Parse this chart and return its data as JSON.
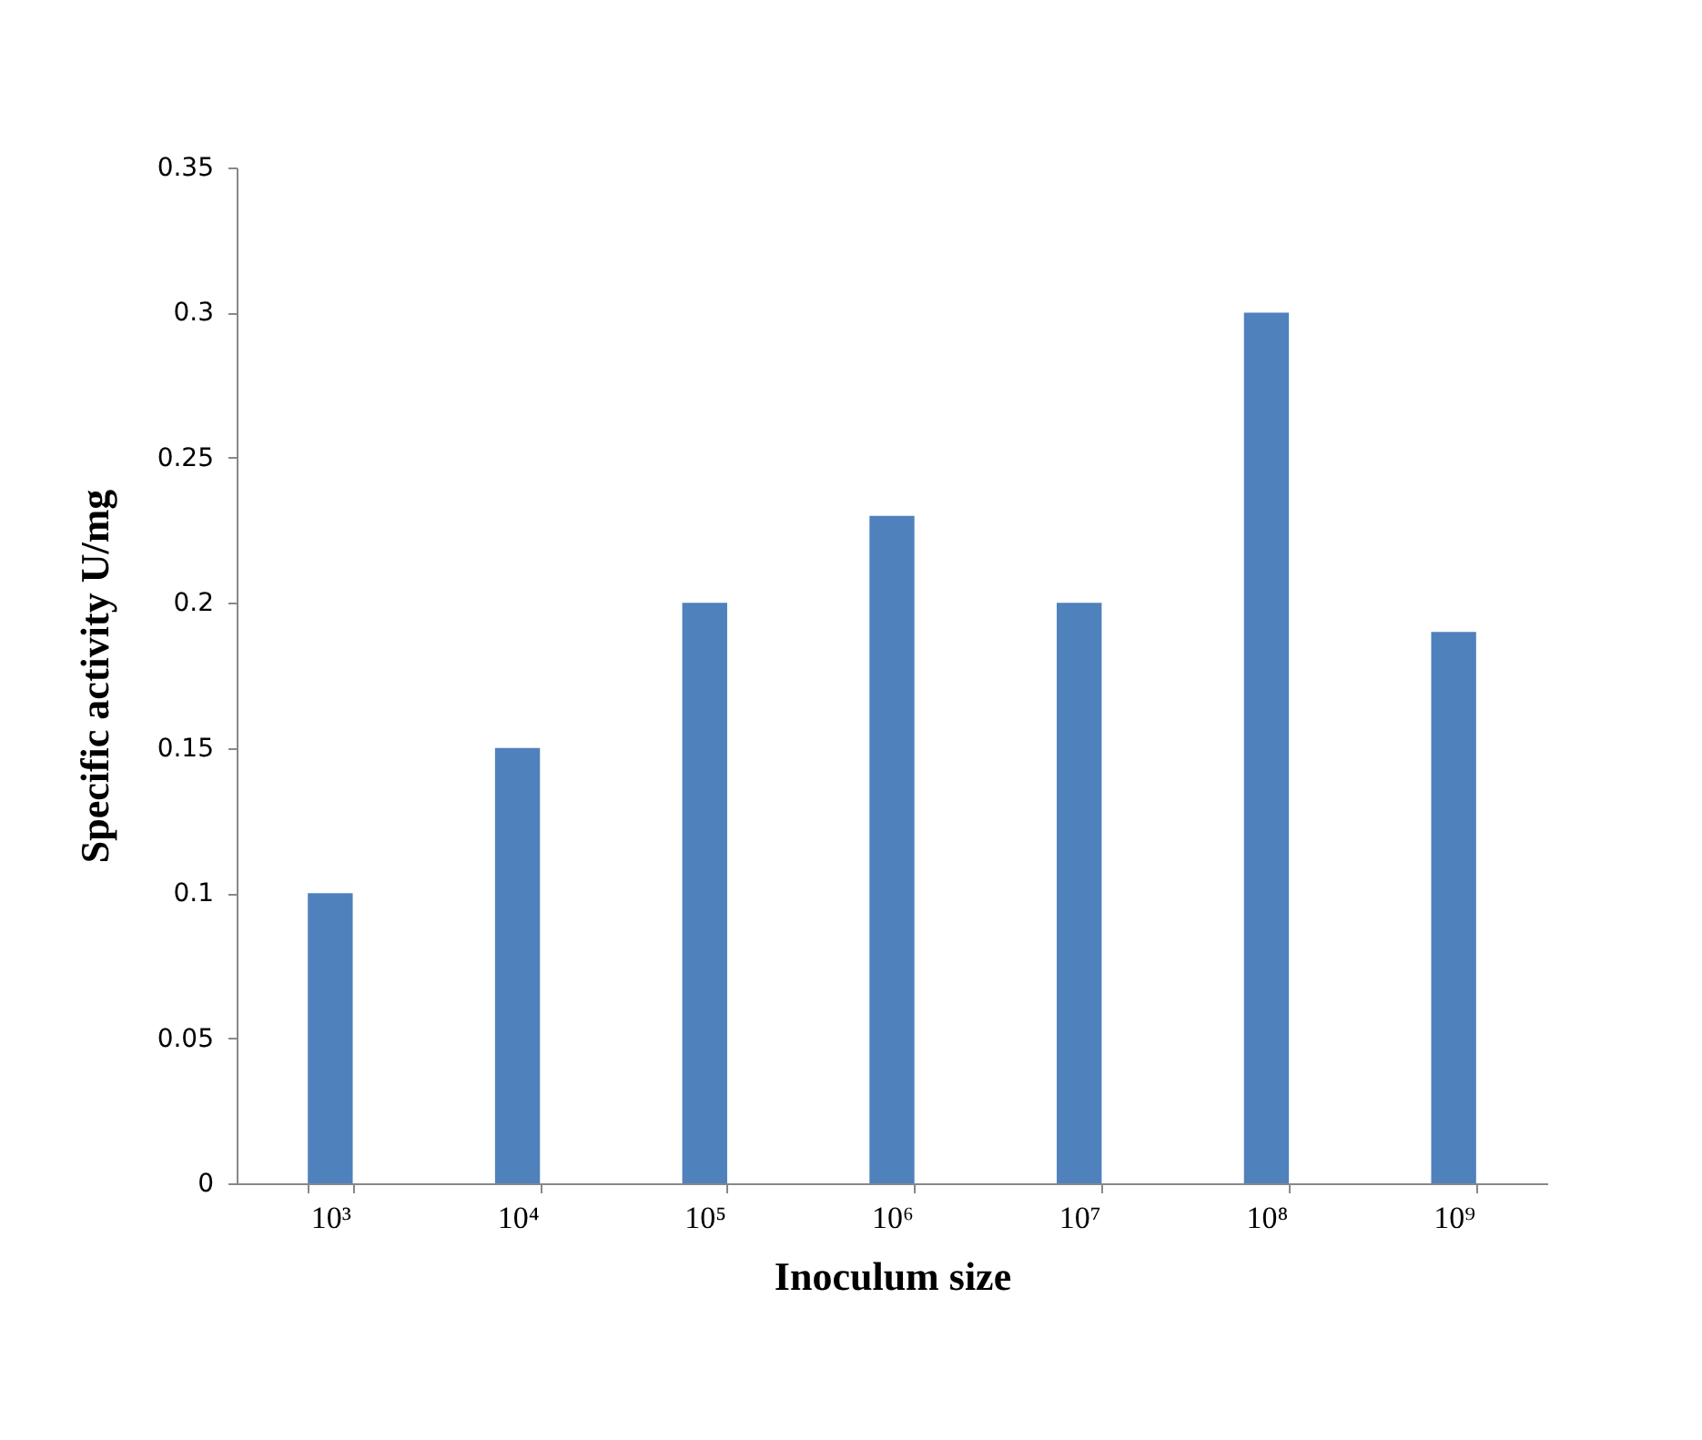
{
  "chart_data": {
    "type": "bar",
    "xlabel": "Inoculum size",
    "ylabel": "Specific activity U/mg",
    "categories": [
      "10³",
      "10⁴",
      "10⁵",
      "10⁶",
      "10⁷",
      "10⁸",
      "10⁹"
    ],
    "values": [
      0.1,
      0.15,
      0.2,
      0.23,
      0.2,
      0.3,
      0.19
    ],
    "color": "#4f81bd",
    "ylim": [
      0,
      0.35
    ],
    "yticks": [
      0,
      0.05,
      0.1,
      0.15,
      0.2,
      0.25,
      0.3,
      0.35
    ],
    "grid": false
  }
}
